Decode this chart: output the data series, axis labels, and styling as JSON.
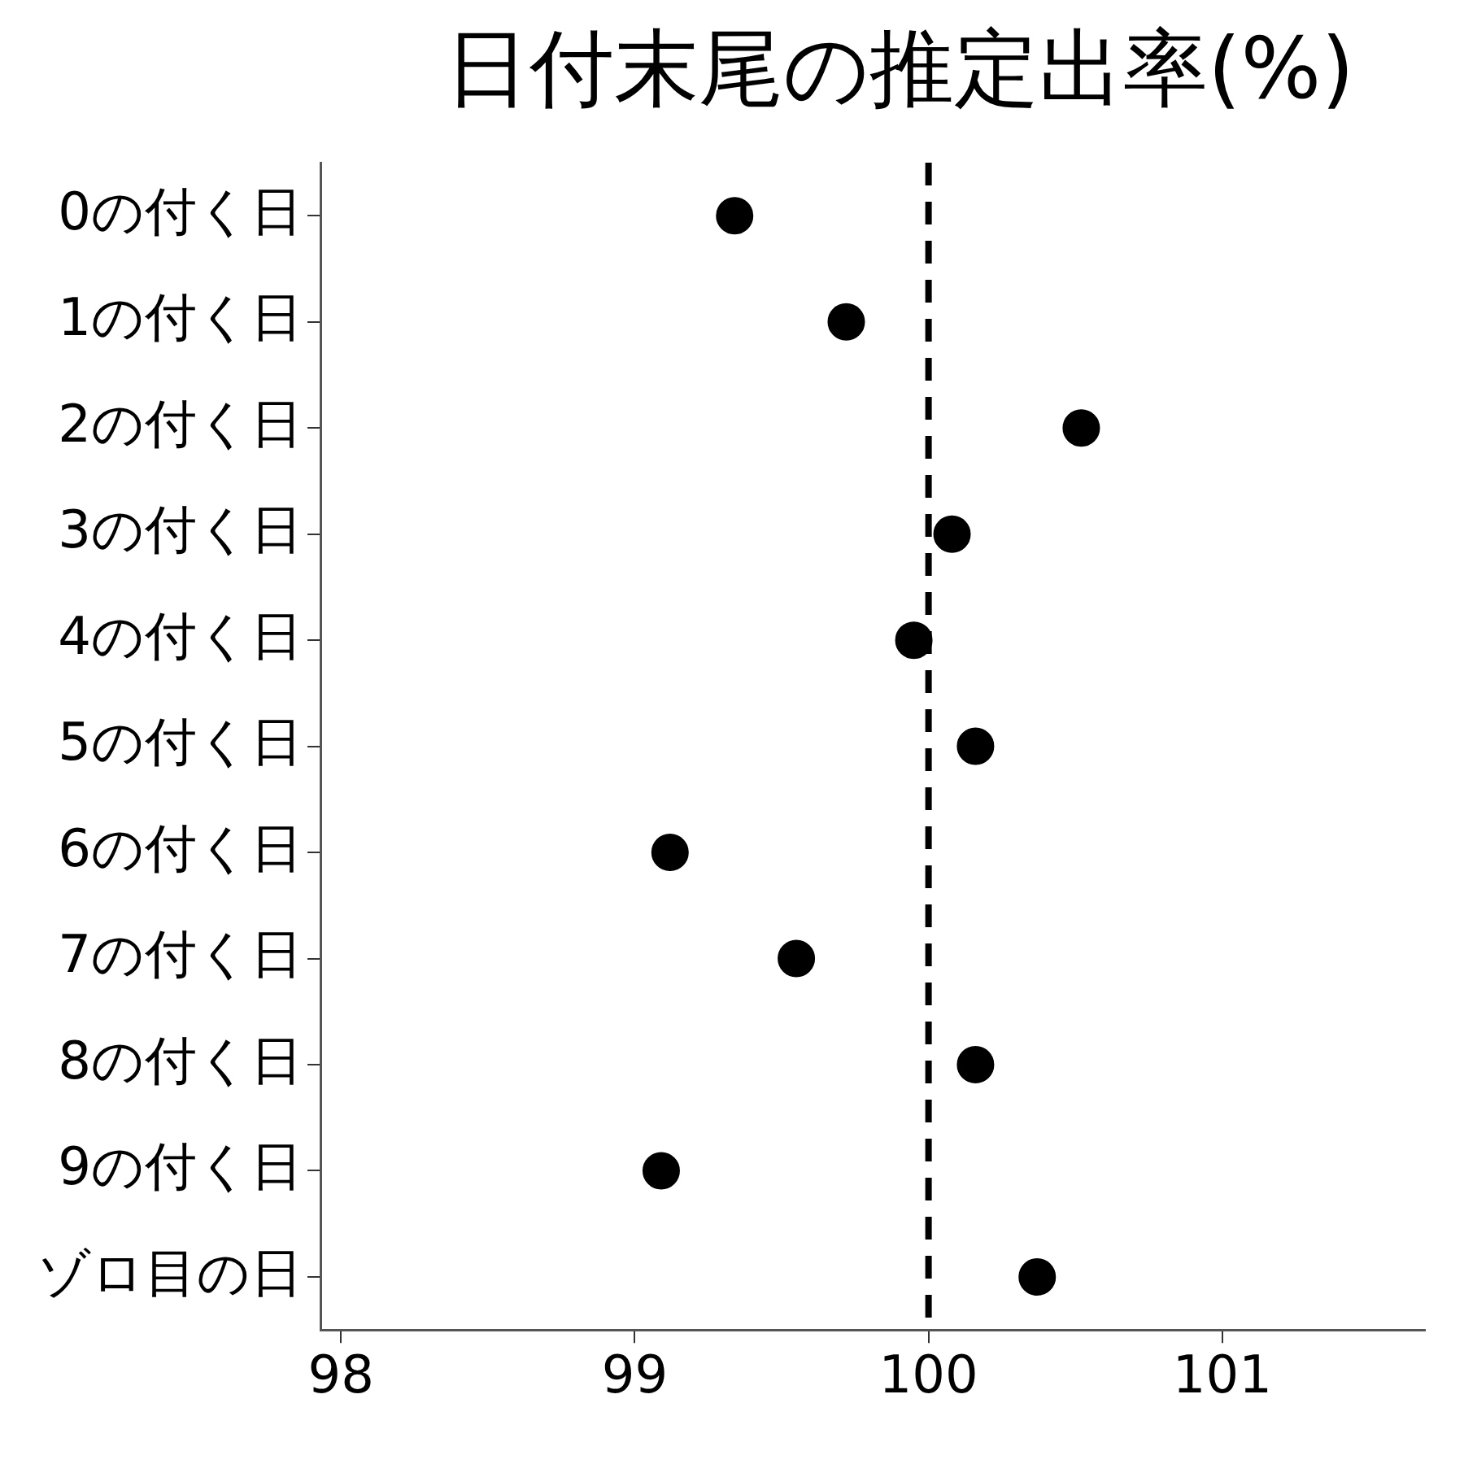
{
  "chart_data": {
    "type": "scatter",
    "title": "日付末尾の推定出率(%)",
    "orientation": "horizontal",
    "categories": [
      "0の付く日",
      "1の付く日",
      "2の付く日",
      "3の付く日",
      "4の付く日",
      "5の付く日",
      "6の付く日",
      "7の付く日",
      "8の付く日",
      "9の付く日",
      "ゾロ目の日"
    ],
    "series": [
      {
        "color": "#000000",
        "values": [
          99.34,
          99.72,
          100.52,
          100.08,
          99.95,
          100.16,
          99.12,
          99.55,
          100.16,
          99.09,
          100.37
        ]
      }
    ],
    "xlim": [
      97.93,
      101.69
    ],
    "xticks": [
      98,
      99,
      100,
      101
    ],
    "ref_lines": [
      {
        "axis": "x",
        "value": 100,
        "line_style": "dashed",
        "color": "#000000"
      }
    ],
    "marker": "circle",
    "legend": false,
    "grid": false
  }
}
